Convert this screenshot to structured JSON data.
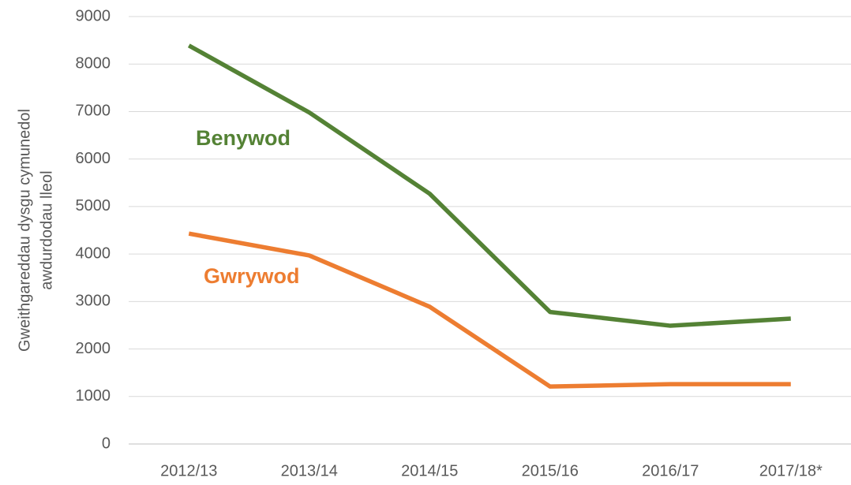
{
  "chart_data": {
    "type": "line",
    "ylabel": [
      "Gweithgareddau dysgu cymunedol",
      "awdurdodau lleol"
    ],
    "categories": [
      "2012/13",
      "2013/14",
      "2014/15",
      "2015/16",
      "2016/17",
      "2017/18*"
    ],
    "series": [
      {
        "name": "Benywod",
        "color": "#548235",
        "values": [
          8390,
          6980,
          5270,
          2780,
          2490,
          2640
        ]
      },
      {
        "name": "Gwrywod",
        "color": "#ed7d31",
        "values": [
          4430,
          3970,
          2890,
          1210,
          1260,
          1260
        ]
      }
    ],
    "ylim": [
      0,
      9000
    ],
    "yticks": [
      0,
      1000,
      2000,
      3000,
      4000,
      5000,
      6000,
      7000,
      8000,
      9000
    ],
    "grid": true
  }
}
